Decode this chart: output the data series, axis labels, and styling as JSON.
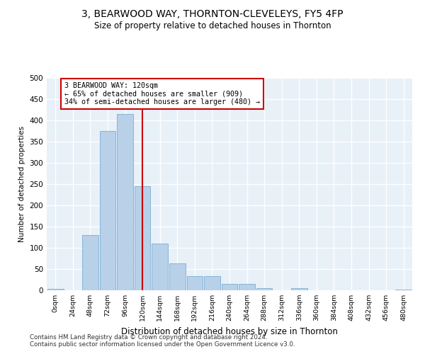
{
  "title": "3, BEARWOOD WAY, THORNTON-CLEVELEYS, FY5 4FP",
  "subtitle": "Size of property relative to detached houses in Thornton",
  "xlabel": "Distribution of detached houses by size in Thornton",
  "ylabel": "Number of detached properties",
  "bar_color": "#b8d0e8",
  "bar_edge_color": "#7aafd4",
  "bg_color": "#e8f0f8",
  "grid_color": "#ffffff",
  "fig_color": "#ffffff",
  "categories": [
    "0sqm",
    "24sqm",
    "48sqm",
    "72sqm",
    "96sqm",
    "120sqm",
    "144sqm",
    "168sqm",
    "192sqm",
    "216sqm",
    "240sqm",
    "264sqm",
    "288sqm",
    "312sqm",
    "336sqm",
    "360sqm",
    "384sqm",
    "408sqm",
    "432sqm",
    "456sqm",
    "480sqm"
  ],
  "values": [
    3,
    0,
    130,
    375,
    415,
    245,
    110,
    63,
    33,
    33,
    15,
    15,
    5,
    0,
    5,
    0,
    0,
    0,
    0,
    0,
    1
  ],
  "property_size_label": "120sqm",
  "annotation_text": "3 BEARWOOD WAY: 120sqm\n← 65% of detached houses are smaller (909)\n34% of semi-detached houses are larger (480) →",
  "annotation_box_color": "#ffffff",
  "annotation_box_edge": "#cc0000",
  "vline_color": "#cc0000",
  "ylim": [
    0,
    500
  ],
  "yticks": [
    0,
    50,
    100,
    150,
    200,
    250,
    300,
    350,
    400,
    450,
    500
  ],
  "footnote1": "Contains HM Land Registry data © Crown copyright and database right 2024.",
  "footnote2": "Contains public sector information licensed under the Open Government Licence v3.0."
}
